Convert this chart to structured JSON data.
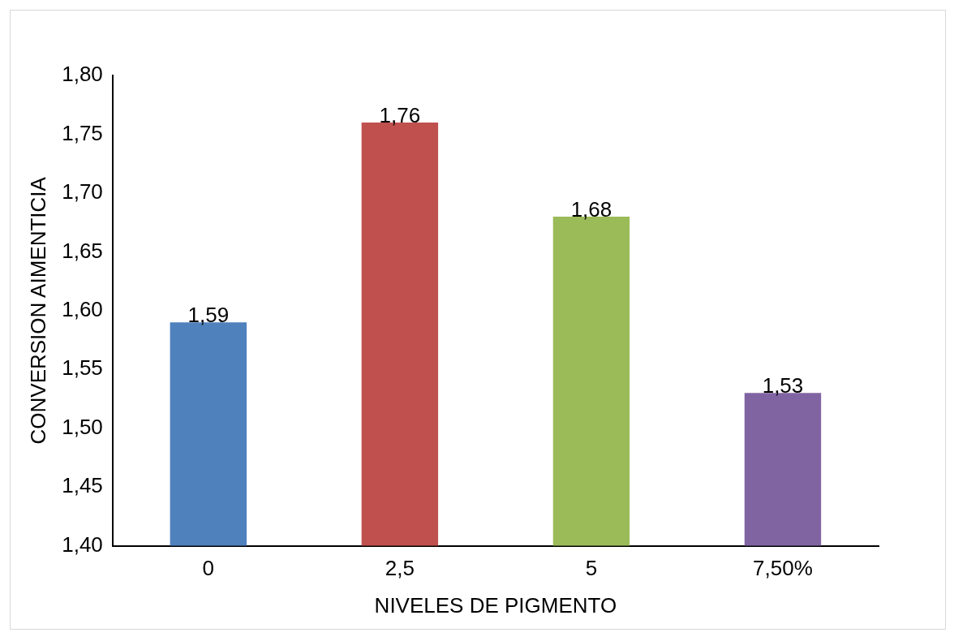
{
  "chart_data": {
    "type": "bar",
    "xlabel": "NIVELES DE PIGMENTO",
    "ylabel": "CONVERSION AIMENTICIA",
    "categories": [
      "0",
      "2,5",
      "5",
      "7,50%"
    ],
    "values": [
      1.59,
      1.76,
      1.68,
      1.53
    ],
    "colors": [
      "#4f81bd",
      "#c0504d",
      "#9bbb59",
      "#8064a2"
    ],
    "value_labels": [
      "1,59",
      "1,76",
      "1,68",
      "1,53"
    ],
    "ylim": [
      1.4,
      1.8
    ],
    "yticks": [
      {
        "value": 1.4,
        "label": "1,40"
      },
      {
        "value": 1.45,
        "label": "1,45"
      },
      {
        "value": 1.5,
        "label": "1,50"
      },
      {
        "value": 1.55,
        "label": "1,55"
      },
      {
        "value": 1.6,
        "label": "1,60"
      },
      {
        "value": 1.65,
        "label": "1,65"
      },
      {
        "value": 1.7,
        "label": "1,70"
      },
      {
        "value": 1.75,
        "label": "1,75"
      },
      {
        "value": 1.8,
        "label": "1,80"
      }
    ],
    "grid": false,
    "legend": false
  }
}
